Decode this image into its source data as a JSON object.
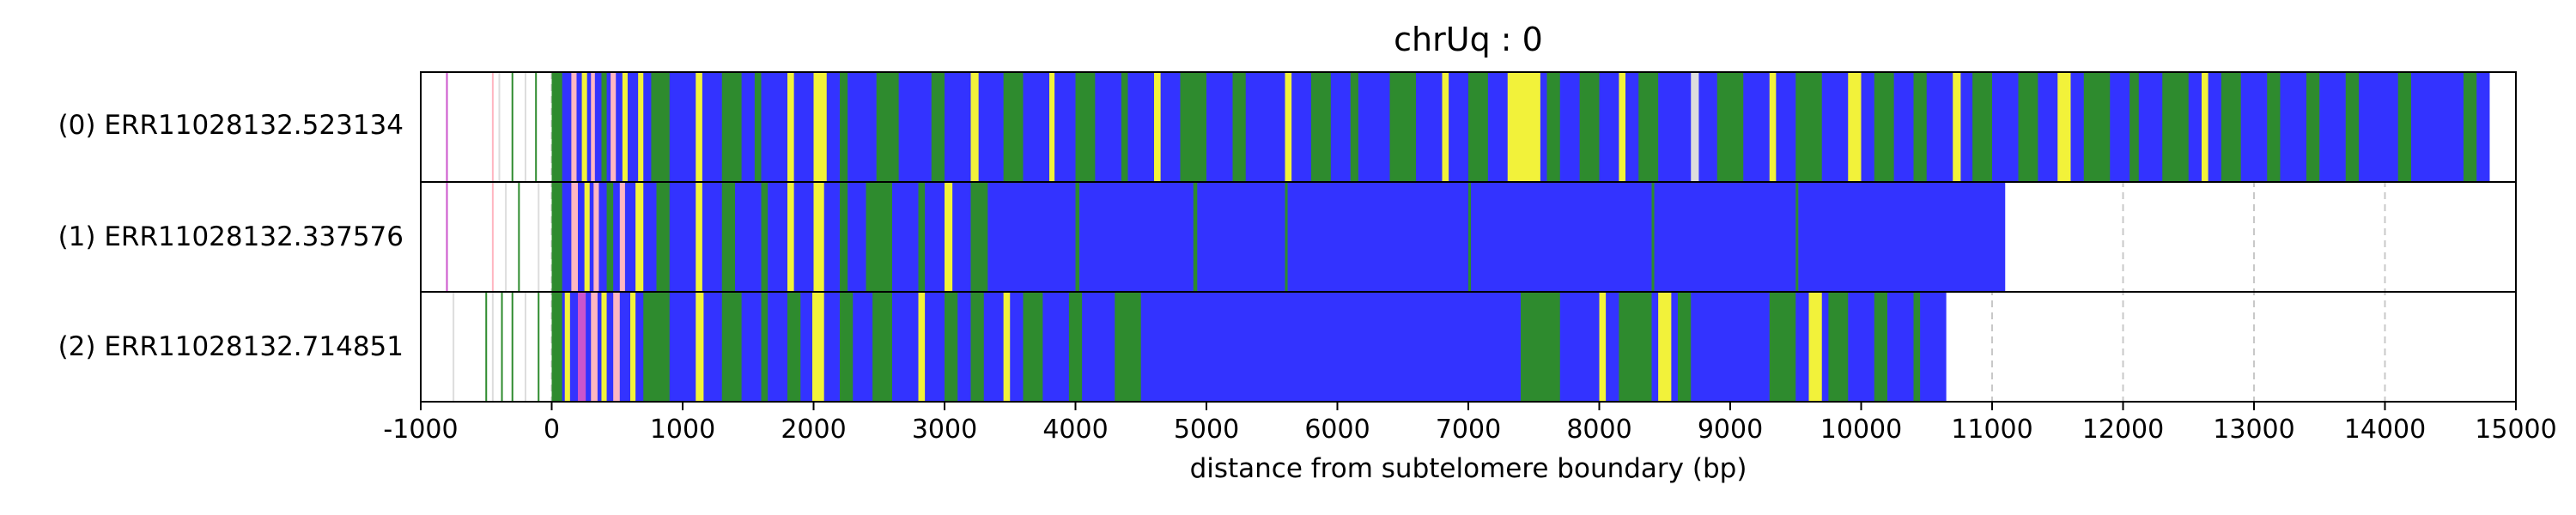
{
  "chart_data": {
    "type": "bar",
    "title": "chrUq : 0",
    "xlabel": "distance from subtelomere boundary (bp)",
    "ylabel": "",
    "xlim": [
      -1000,
      15000
    ],
    "xticks": [
      "-1000",
      "0",
      "1000",
      "2000",
      "3000",
      "4000",
      "5000",
      "6000",
      "7000",
      "8000",
      "9000",
      "10000",
      "11000",
      "12000",
      "13000",
      "14000",
      "15000"
    ],
    "grid": "vertical dashed gridlines at every 1000 bp",
    "base_color": "#3333ff",
    "palette": {
      "blue": "#3333ff",
      "green": "#2e8b2e",
      "yellow": "#f2f23a",
      "pink": "#ffb6c1",
      "violet": "#cc55cc",
      "light": "#dddddd"
    },
    "series": [
      {
        "name": "(0) ERR11028132.523134",
        "start": 0,
        "end": 14800,
        "leading": [
          {
            "x": -800,
            "c": "violet"
          },
          {
            "x": -450,
            "c": "pink"
          },
          {
            "x": -400,
            "c": "light"
          },
          {
            "x": -300,
            "c": "green"
          },
          {
            "x": -200,
            "c": "light"
          },
          {
            "x": -120,
            "c": "green"
          }
        ],
        "features": [
          {
            "from": 0,
            "to": 80,
            "c": "green"
          },
          {
            "from": 150,
            "to": 190,
            "c": "pink"
          },
          {
            "from": 230,
            "to": 270,
            "c": "yellow"
          },
          {
            "from": 300,
            "to": 330,
            "c": "pink"
          },
          {
            "from": 380,
            "to": 420,
            "c": "green"
          },
          {
            "from": 450,
            "to": 490,
            "c": "pink"
          },
          {
            "from": 540,
            "to": 580,
            "c": "yellow"
          },
          {
            "from": 660,
            "to": 700,
            "c": "yellow"
          },
          {
            "from": 760,
            "to": 900,
            "c": "green"
          },
          {
            "from": 1100,
            "to": 1150,
            "c": "yellow"
          },
          {
            "from": 1300,
            "to": 1450,
            "c": "green"
          },
          {
            "from": 1550,
            "to": 1600,
            "c": "green"
          },
          {
            "from": 1800,
            "to": 1850,
            "c": "yellow"
          },
          {
            "from": 2000,
            "to": 2100,
            "c": "yellow"
          },
          {
            "from": 2200,
            "to": 2260,
            "c": "green"
          },
          {
            "from": 2480,
            "to": 2650,
            "c": "green"
          },
          {
            "from": 2900,
            "to": 3000,
            "c": "green"
          },
          {
            "from": 3200,
            "to": 3260,
            "c": "yellow"
          },
          {
            "from": 3450,
            "to": 3600,
            "c": "green"
          },
          {
            "from": 3800,
            "to": 3840,
            "c": "yellow"
          },
          {
            "from": 4000,
            "to": 4150,
            "c": "green"
          },
          {
            "from": 4350,
            "to": 4400,
            "c": "green"
          },
          {
            "from": 4600,
            "to": 4650,
            "c": "yellow"
          },
          {
            "from": 4800,
            "to": 5000,
            "c": "green"
          },
          {
            "from": 5200,
            "to": 5300,
            "c": "green"
          },
          {
            "from": 5600,
            "to": 5650,
            "c": "yellow"
          },
          {
            "from": 5800,
            "to": 5950,
            "c": "green"
          },
          {
            "from": 6100,
            "to": 6160,
            "c": "green"
          },
          {
            "from": 6400,
            "to": 6600,
            "c": "green"
          },
          {
            "from": 6800,
            "to": 6850,
            "c": "yellow"
          },
          {
            "from": 7000,
            "to": 7150,
            "c": "green"
          },
          {
            "from": 7300,
            "to": 7550,
            "c": "yellow"
          },
          {
            "from": 7600,
            "to": 7700,
            "c": "green"
          },
          {
            "from": 7850,
            "to": 8000,
            "c": "green"
          },
          {
            "from": 8150,
            "to": 8200,
            "c": "yellow"
          },
          {
            "from": 8300,
            "to": 8450,
            "c": "green"
          },
          {
            "from": 8700,
            "to": 8760,
            "c": "light"
          },
          {
            "from": 8900,
            "to": 9100,
            "c": "green"
          },
          {
            "from": 9300,
            "to": 9350,
            "c": "yellow"
          },
          {
            "from": 9500,
            "to": 9700,
            "c": "green"
          },
          {
            "from": 9900,
            "to": 10000,
            "c": "yellow"
          },
          {
            "from": 10100,
            "to": 10250,
            "c": "green"
          },
          {
            "from": 10400,
            "to": 10500,
            "c": "green"
          },
          {
            "from": 10700,
            "to": 10760,
            "c": "yellow"
          },
          {
            "from": 10850,
            "to": 11000,
            "c": "green"
          },
          {
            "from": 11200,
            "to": 11350,
            "c": "green"
          },
          {
            "from": 11500,
            "to": 11600,
            "c": "yellow"
          },
          {
            "from": 11700,
            "to": 11900,
            "c": "green"
          },
          {
            "from": 12050,
            "to": 12120,
            "c": "green"
          },
          {
            "from": 12300,
            "to": 12500,
            "c": "green"
          },
          {
            "from": 12600,
            "to": 12650,
            "c": "yellow"
          },
          {
            "from": 12750,
            "to": 12900,
            "c": "green"
          },
          {
            "from": 13100,
            "to": 13200,
            "c": "green"
          },
          {
            "from": 13400,
            "to": 13500,
            "c": "green"
          },
          {
            "from": 13700,
            "to": 13800,
            "c": "green"
          },
          {
            "from": 14100,
            "to": 14200,
            "c": "green"
          },
          {
            "from": 14600,
            "to": 14700,
            "c": "green"
          }
        ]
      },
      {
        "name": "(1) ERR11028132.337576",
        "start": 0,
        "end": 11100,
        "leading": [
          {
            "x": -800,
            "c": "violet"
          },
          {
            "x": -450,
            "c": "pink"
          },
          {
            "x": -350,
            "c": "light"
          },
          {
            "x": -250,
            "c": "green"
          },
          {
            "x": -100,
            "c": "light"
          }
        ],
        "features": [
          {
            "from": 0,
            "to": 80,
            "c": "green"
          },
          {
            "from": 150,
            "to": 200,
            "c": "pink"
          },
          {
            "from": 250,
            "to": 290,
            "c": "yellow"
          },
          {
            "from": 320,
            "to": 360,
            "c": "pink"
          },
          {
            "from": 420,
            "to": 470,
            "c": "green"
          },
          {
            "from": 520,
            "to": 560,
            "c": "pink"
          },
          {
            "from": 640,
            "to": 700,
            "c": "yellow"
          },
          {
            "from": 800,
            "to": 900,
            "c": "green"
          },
          {
            "from": 1100,
            "to": 1150,
            "c": "yellow"
          },
          {
            "from": 1300,
            "to": 1400,
            "c": "green"
          },
          {
            "from": 1600,
            "to": 1650,
            "c": "green"
          },
          {
            "from": 1800,
            "to": 1850,
            "c": "yellow"
          },
          {
            "from": 2000,
            "to": 2080,
            "c": "yellow"
          },
          {
            "from": 2200,
            "to": 2260,
            "c": "green"
          },
          {
            "from": 2400,
            "to": 2600,
            "c": "green"
          },
          {
            "from": 2800,
            "to": 2850,
            "c": "green"
          },
          {
            "from": 3000,
            "to": 3060,
            "c": "yellow"
          },
          {
            "from": 3200,
            "to": 3330,
            "c": "green"
          },
          {
            "from": 4000,
            "to": 4030,
            "c": "green"
          },
          {
            "from": 4900,
            "to": 4930,
            "c": "green"
          },
          {
            "from": 5600,
            "to": 5620,
            "c": "green"
          },
          {
            "from": 7000,
            "to": 7020,
            "c": "green"
          },
          {
            "from": 8400,
            "to": 8420,
            "c": "green"
          },
          {
            "from": 9500,
            "to": 9520,
            "c": "green"
          }
        ]
      },
      {
        "name": "(2) ERR11028132.714851",
        "start": 0,
        "end": 10650,
        "leading": [
          {
            "x": -750,
            "c": "light"
          },
          {
            "x": -500,
            "c": "green"
          },
          {
            "x": -450,
            "c": "light"
          },
          {
            "x": -380,
            "c": "green"
          },
          {
            "x": -300,
            "c": "green"
          },
          {
            "x": -200,
            "c": "light"
          },
          {
            "x": -100,
            "c": "green"
          }
        ],
        "features": [
          {
            "from": 0,
            "to": 80,
            "c": "green"
          },
          {
            "from": 100,
            "to": 140,
            "c": "yellow"
          },
          {
            "from": 200,
            "to": 260,
            "c": "violet"
          },
          {
            "from": 300,
            "to": 350,
            "c": "pink"
          },
          {
            "from": 380,
            "to": 420,
            "c": "yellow"
          },
          {
            "from": 470,
            "to": 520,
            "c": "pink"
          },
          {
            "from": 600,
            "to": 640,
            "c": "yellow"
          },
          {
            "from": 700,
            "to": 900,
            "c": "green"
          },
          {
            "from": 1100,
            "to": 1160,
            "c": "yellow"
          },
          {
            "from": 1300,
            "to": 1450,
            "c": "green"
          },
          {
            "from": 1600,
            "to": 1650,
            "c": "green"
          },
          {
            "from": 1800,
            "to": 1900,
            "c": "green"
          },
          {
            "from": 1990,
            "to": 2080,
            "c": "yellow"
          },
          {
            "from": 2200,
            "to": 2300,
            "c": "green"
          },
          {
            "from": 2450,
            "to": 2600,
            "c": "green"
          },
          {
            "from": 2800,
            "to": 2850,
            "c": "yellow"
          },
          {
            "from": 3000,
            "to": 3100,
            "c": "green"
          },
          {
            "from": 3200,
            "to": 3300,
            "c": "green"
          },
          {
            "from": 3450,
            "to": 3500,
            "c": "yellow"
          },
          {
            "from": 3600,
            "to": 3750,
            "c": "green"
          },
          {
            "from": 3950,
            "to": 4050,
            "c": "green"
          },
          {
            "from": 4300,
            "to": 4500,
            "c": "green"
          },
          {
            "from": 7400,
            "to": 7700,
            "c": "green"
          },
          {
            "from": 8000,
            "to": 8050,
            "c": "yellow"
          },
          {
            "from": 8150,
            "to": 8400,
            "c": "green"
          },
          {
            "from": 8450,
            "to": 8550,
            "c": "yellow"
          },
          {
            "from": 8600,
            "to": 8700,
            "c": "green"
          },
          {
            "from": 9300,
            "to": 9500,
            "c": "green"
          },
          {
            "from": 9600,
            "to": 9700,
            "c": "yellow"
          },
          {
            "from": 9750,
            "to": 9900,
            "c": "green"
          },
          {
            "from": 10100,
            "to": 10200,
            "c": "green"
          },
          {
            "from": 10400,
            "to": 10450,
            "c": "green"
          }
        ]
      }
    ]
  }
}
